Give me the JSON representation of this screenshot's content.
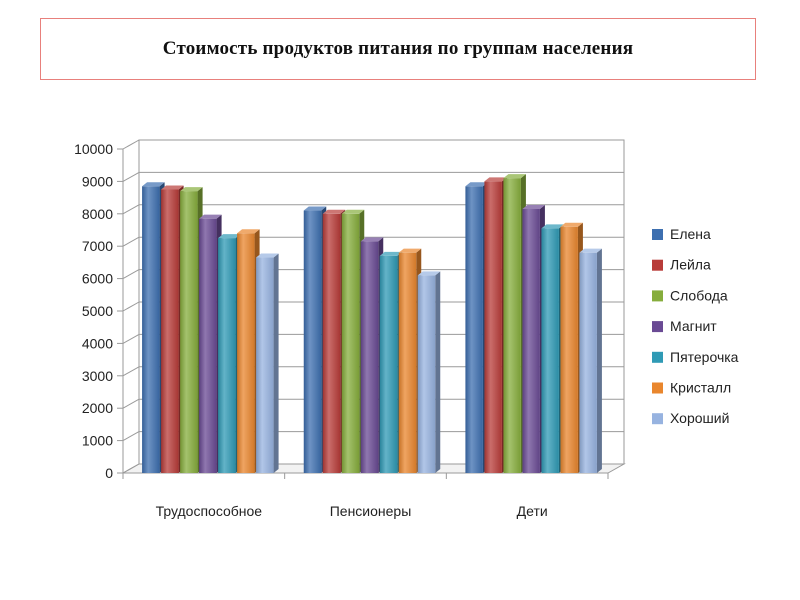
{
  "title": "Стоимость продуктов питания по группам населения",
  "chart_data": {
    "type": "bar",
    "style": "3d-clustered-column",
    "title": "Стоимость продуктов питания по группам населения",
    "categories": [
      "Трудоспособное",
      "Пенсионеры",
      "Дети"
    ],
    "ylim": [
      0,
      10000
    ],
    "yticks": [
      "0",
      "1000",
      "2000",
      "3000",
      "4000",
      "5000",
      "6000",
      "7000",
      "8000",
      "9000",
      "10000"
    ],
    "grid": true,
    "legend_position": "right",
    "series": [
      {
        "name": "Елена",
        "color": "#3d6fb0",
        "values": [
          8850,
          8100,
          8850
        ]
      },
      {
        "name": "Лейла",
        "color": "#b83c39",
        "values": [
          8750,
          8000,
          9000
        ]
      },
      {
        "name": "Слобода",
        "color": "#86ad3c",
        "values": [
          8700,
          8000,
          9100
        ]
      },
      {
        "name": "Магнит",
        "color": "#6a4a94",
        "values": [
          7850,
          7150,
          8150
        ]
      },
      {
        "name": "Пятерочка",
        "color": "#2f9ab5",
        "values": [
          7250,
          6700,
          7550
        ]
      },
      {
        "name": "Кристалл",
        "color": "#e9862d",
        "values": [
          7400,
          6800,
          7600
        ]
      },
      {
        "name": "Хороший",
        "color": "#97b3e0",
        "values": [
          6650,
          6100,
          6800
        ]
      }
    ]
  }
}
